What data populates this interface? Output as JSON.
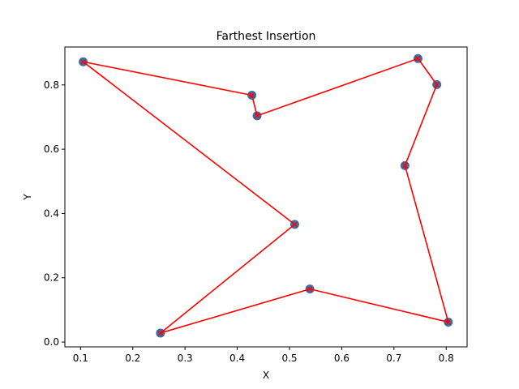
{
  "chart_data": {
    "type": "scatter",
    "title": "Farthest Insertion",
    "xlabel": "X",
    "ylabel": "Y",
    "xlim": [
      0.07,
      0.84
    ],
    "ylim": [
      -0.015,
      0.918
    ],
    "xticks": [
      "0.1",
      "0.2",
      "0.3",
      "0.4",
      "0.5",
      "0.6",
      "0.7",
      "0.8"
    ],
    "yticks": [
      "0.0",
      "0.2",
      "0.4",
      "0.6",
      "0.8"
    ],
    "grid": false,
    "point_color": "#3b6ea5",
    "line_color": "#ff0000",
    "points": [
      {
        "x": 0.105,
        "y": 0.872
      },
      {
        "x": 0.51,
        "y": 0.366
      },
      {
        "x": 0.253,
        "y": 0.028
      },
      {
        "x": 0.539,
        "y": 0.165
      },
      {
        "x": 0.804,
        "y": 0.062
      },
      {
        "x": 0.721,
        "y": 0.549
      },
      {
        "x": 0.782,
        "y": 0.801
      },
      {
        "x": 0.746,
        "y": 0.882
      },
      {
        "x": 0.438,
        "y": 0.704
      },
      {
        "x": 0.428,
        "y": 0.768
      }
    ],
    "route": [
      0,
      1,
      2,
      3,
      4,
      5,
      6,
      7,
      8,
      9
    ]
  }
}
